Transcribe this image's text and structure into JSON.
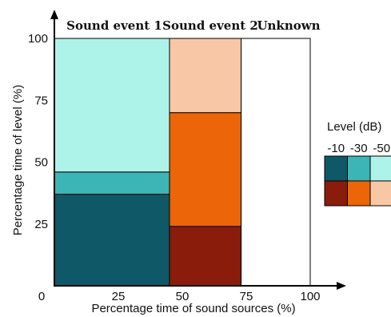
{
  "chart_data": {
    "type": "mosaic",
    "xlabel": "Percentage time of sound sources (%)",
    "ylabel": "Percentage time of level (%)",
    "xlim": [
      0,
      100
    ],
    "ylim": [
      0,
      100
    ],
    "xticks": [
      0,
      25,
      50,
      75,
      100
    ],
    "yticks": [
      25,
      50,
      75,
      100
    ],
    "columns": [
      {
        "name": "Sound event 1",
        "x_start": 0,
        "x_end": 45,
        "segments": [
          {
            "level": "-10",
            "y_start": 0,
            "y_end": 37,
            "color": "#0f5867"
          },
          {
            "level": "-30",
            "y_start": 37,
            "y_end": 46,
            "color": "#3cb5b6"
          },
          {
            "level": "-50",
            "y_start": 46,
            "y_end": 100,
            "color": "#aef3ea"
          }
        ]
      },
      {
        "name": "Sound event 2",
        "x_start": 45,
        "x_end": 73,
        "segments": [
          {
            "level": "-10",
            "y_start": 0,
            "y_end": 24,
            "color": "#8a1c0b"
          },
          {
            "level": "-30",
            "y_start": 24,
            "y_end": 70,
            "color": "#ec6508"
          },
          {
            "level": "-50",
            "y_start": 70,
            "y_end": 100,
            "color": "#f8c7a6"
          }
        ]
      },
      {
        "name": "Unknown",
        "x_start": 73,
        "x_end": 100,
        "segments": [
          {
            "level": "",
            "y_start": 0,
            "y_end": 100,
            "color": "#ffffff"
          }
        ]
      }
    ],
    "legend": {
      "title": "Level (dB)",
      "columns": [
        "-10",
        "-30",
        "-50"
      ],
      "rows": [
        [
          "#0f5867",
          "#3cb5b6",
          "#aef3ea"
        ],
        [
          "#8a1c0b",
          "#ec6508",
          "#f8c7a6"
        ]
      ]
    }
  }
}
